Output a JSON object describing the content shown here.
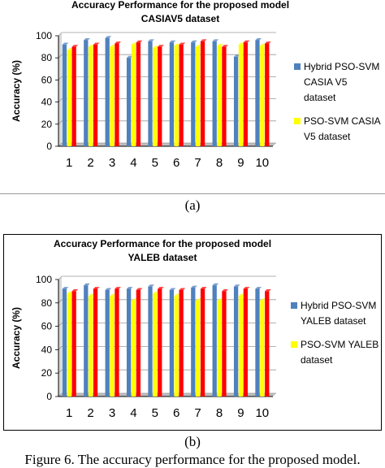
{
  "chart_data": [
    {
      "type": "bar",
      "title": "Accuracy Performance for the proposed model",
      "subtitle": "CASIAV5 dataset",
      "xlabel": "",
      "ylabel": "Accuracy (%)",
      "ylim": [
        0,
        100
      ],
      "yticks": [
        0,
        20,
        40,
        60,
        80,
        100
      ],
      "categories": [
        "1",
        "2",
        "3",
        "4",
        "5",
        "6",
        "7",
        "8",
        "9",
        "10"
      ],
      "grid": true,
      "legend": "right",
      "series": [
        {
          "name": "Hybrid PSO-SVM CASIA V5 dataset",
          "color": "#4F81BD",
          "values": [
            92,
            96,
            98,
            80,
            95,
            94,
            94,
            95,
            81,
            96
          ]
        },
        {
          "name": "PSO-SVM CASIA V5 dataset",
          "color": "#FFFF00",
          "values": [
            87,
            90,
            90,
            92,
            89,
            91,
            90,
            91,
            92,
            91
          ]
        },
        {
          "name": "",
          "color": "#FF0000",
          "values": [
            90,
            92,
            93,
            94,
            90,
            92,
            95,
            90,
            94,
            93
          ]
        }
      ]
    },
    {
      "type": "bar",
      "title": "Accuracy Performance for the proposed model",
      "subtitle": "YALEB dataset",
      "xlabel": "",
      "ylabel": "Accuracy (%)",
      "ylim": [
        0,
        100
      ],
      "yticks": [
        0,
        20,
        40,
        60,
        80,
        100
      ],
      "categories": [
        "1",
        "2",
        "3",
        "4",
        "5",
        "6",
        "7",
        "8",
        "9",
        "10"
      ],
      "grid": true,
      "legend": "right",
      "series": [
        {
          "name": "Hybrid PSO-SVM YALEB dataset",
          "color": "#4F81BD",
          "values": [
            92,
            95,
            91,
            92,
            94,
            91,
            93,
            95,
            94,
            92
          ]
        },
        {
          "name": "PSO-SVM YALEB dataset",
          "color": "#FFFF00",
          "values": [
            88,
            86,
            86,
            82,
            88,
            86,
            82,
            82,
            86,
            82
          ]
        },
        {
          "name": "",
          "color": "#FF0000",
          "values": [
            90,
            92,
            92,
            91,
            92,
            91,
            92,
            90,
            92,
            90
          ]
        }
      ]
    }
  ],
  "labels": {
    "sub_a": "(a)",
    "sub_b": "(b)",
    "caption": "Figure 6. The accuracy performance for the proposed model."
  }
}
